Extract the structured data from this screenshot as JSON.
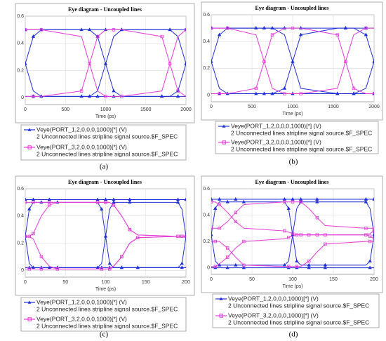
{
  "chart_data": [
    {
      "type": "line",
      "caption": "(a)",
      "title": "Eye diagram - Uncoupled lines",
      "xlabel": "Time (ps)",
      "x": [
        0,
        100,
        200,
        700,
        800,
        900,
        1000,
        1100,
        1200,
        1700,
        1800,
        1900,
        2000
      ],
      "xlim": [
        0,
        2000
      ],
      "xticks": [
        0,
        500,
        1000,
        1500,
        2000
      ],
      "ylim": [
        -0.05,
        0.6
      ],
      "yticks": [
        0,
        0.2,
        0.4,
        0.6
      ],
      "grid": true,
      "series": [
        {
          "name": "Veye(PORT_1,2,0,0,0,1000)[*] (V)",
          "description": "2 Unconnected lines stripline signal source.$F_SPEC",
          "color": "#1f2fd8",
          "marker": "triangle",
          "traces": [
            [
              0.5,
              0.5,
              0.5,
              0.5,
              0.5,
              0.5,
              0.5,
              0.5,
              0.5,
              0.5,
              0.5,
              0.5,
              0.5
            ],
            [
              0.01,
              0.01,
              0.01,
              0.01,
              0.01,
              0.01,
              0.01,
              0.01,
              0.01,
              0.01,
              0.01,
              0.01,
              0.01
            ],
            [
              0.25,
              0.05,
              0.01,
              0.01,
              0.01,
              0.05,
              0.25,
              0.45,
              0.5,
              0.5,
              0.5,
              0.45,
              0.25
            ],
            [
              0.25,
              0.45,
              0.5,
              0.5,
              0.5,
              0.45,
              0.25,
              0.05,
              0.01,
              0.01,
              0.01,
              0.05,
              0.25
            ]
          ]
        },
        {
          "name": "Veye(PORT_3,2,0,0,0,1000)[*] (V)",
          "description": "2 Unconnected lines stripline signal source.$F_SPEC",
          "color": "#e63ad8",
          "marker": "square",
          "traces": [
            [
              0.5,
              0.5,
              0.5,
              0.45,
              0.25,
              0.05,
              0.01,
              0.01,
              0.01,
              0.05,
              0.25,
              0.45,
              0.5
            ],
            [
              0.01,
              0.01,
              0.01,
              0.05,
              0.25,
              0.45,
              0.5,
              0.5,
              0.5,
              0.45,
              0.25,
              0.05,
              0.01
            ]
          ]
        }
      ]
    },
    {
      "type": "line",
      "caption": "(b)",
      "title": "Eye diagram - Uncoupled lines",
      "xlabel": "Time (ps)",
      "x": [
        0,
        100,
        200,
        550,
        650,
        750,
        900,
        1000,
        1100,
        1550,
        1650,
        1750,
        1900,
        2000
      ],
      "xlim": [
        0,
        2000
      ],
      "xticks": [
        0,
        500,
        1000,
        1500,
        2000
      ],
      "ylim": [
        -0.05,
        0.6
      ],
      "yticks": [
        0,
        0.2,
        0.4,
        0.6
      ],
      "grid": true,
      "series": [
        {
          "name": "Veye(PORT_1,2,0,0,0,1000)[*] (V)",
          "description": "2 Unconnected lines stripline signal source.$F_SPEC",
          "color": "#1f2fd8",
          "marker": "triangle",
          "traces": [
            [
              0.5,
              0.5,
              0.5,
              0.5,
              0.5,
              0.5,
              0.5,
              0.5,
              0.5,
              0.5,
              0.5,
              0.5,
              0.5,
              0.5
            ],
            [
              0.01,
              0.01,
              0.01,
              0.01,
              0.01,
              0.01,
              0.01,
              0.01,
              0.01,
              0.01,
              0.01,
              0.01,
              0.01,
              0.01
            ],
            [
              0.25,
              0.05,
              0.01,
              0.01,
              0.01,
              0.01,
              0.05,
              0.25,
              0.45,
              0.5,
              0.5,
              0.5,
              0.45,
              0.25
            ],
            [
              0.25,
              0.45,
              0.5,
              0.5,
              0.5,
              0.5,
              0.45,
              0.25,
              0.05,
              0.01,
              0.01,
              0.01,
              0.05,
              0.25
            ]
          ]
        },
        {
          "name": "Veye(PORT_3,2,0,0,0,1000)[*] (V)",
          "description": "2 Unconnected lines stripline signal source.$F_SPEC",
          "color": "#e63ad8",
          "marker": "square",
          "traces": [
            [
              0.5,
              0.5,
              0.5,
              0.45,
              0.25,
              0.05,
              0.01,
              0.01,
              0.01,
              0.05,
              0.25,
              0.45,
              0.5,
              0.5
            ],
            [
              0.01,
              0.01,
              0.01,
              0.05,
              0.25,
              0.45,
              0.5,
              0.5,
              0.5,
              0.45,
              0.25,
              0.05,
              0.01,
              0.01
            ]
          ]
        }
      ]
    },
    {
      "type": "line",
      "caption": "(c)",
      "title": "Eye diagram - Uncoupled lines",
      "xlabel": "Time (ps)",
      "x": [
        0,
        5,
        10,
        20,
        30,
        40,
        90,
        95,
        100,
        105,
        110,
        120,
        130,
        140,
        190,
        195,
        200
      ],
      "xlim": [
        0,
        200
      ],
      "xticks": [
        0,
        50,
        100,
        150,
        200
      ],
      "ylim": [
        -0.05,
        0.6
      ],
      "yticks": [
        0,
        0.2,
        0.4,
        0.6
      ],
      "grid": true,
      "series": [
        {
          "name": "Veye(PORT_1,2,0,0,0,1000)[*] (V)",
          "description": "2 Unconnected lines stripline signal source.$F_SPEC",
          "color": "#1f2fd8",
          "marker": "triangle",
          "traces": [
            [
              0.52,
              0.52,
              0.52,
              0.52,
              0.52,
              0.52,
              0.52,
              0.52,
              0.52,
              0.52,
              0.52,
              0.52,
              0.52,
              0.52,
              0.52,
              0.52,
              0.52
            ],
            [
              0.02,
              0.02,
              0.02,
              0.02,
              0.02,
              0.02,
              0.02,
              0.02,
              0.02,
              0.02,
              0.02,
              0.02,
              0.02,
              0.02,
              0.02,
              0.02,
              0.02
            ],
            [
              0.25,
              0.05,
              0.02,
              0.02,
              0.02,
              0.02,
              0.02,
              0.05,
              0.25,
              0.45,
              0.5,
              0.5,
              0.5,
              0.5,
              0.5,
              0.45,
              0.25
            ],
            [
              0.25,
              0.45,
              0.5,
              0.5,
              0.5,
              0.5,
              0.5,
              0.45,
              0.25,
              0.05,
              0.02,
              0.02,
              0.02,
              0.02,
              0.02,
              0.05,
              0.25
            ]
          ]
        },
        {
          "name": "Veye(PORT_3,2,0,0,0,1000)[*] (V)",
          "description": "2 Unconnected lines stripline signal source.$F_SPEC",
          "color": "#e63ad8",
          "marker": "square",
          "traces": [
            [
              0.25,
              0.25,
              0.27,
              0.4,
              0.48,
              0.5,
              0.5,
              0.5,
              0.5,
              0.5,
              0.48,
              0.4,
              0.3,
              0.26,
              0.25,
              0.25,
              0.25
            ],
            [
              0.25,
              0.25,
              0.23,
              0.1,
              0.03,
              0.01,
              0.01,
              0.01,
              0.01,
              0.01,
              0.03,
              0.1,
              0.2,
              0.24,
              0.25,
              0.25,
              0.25
            ],
            [
              0.5,
              0.5,
              0.5,
              0.5,
              0.5,
              0.5,
              0.5,
              0.5,
              0.5,
              0.5,
              0.48,
              0.4,
              0.3,
              0.26,
              0.25,
              0.25,
              0.25
            ],
            [
              0.01,
              0.01,
              0.01,
              0.01,
              0.01,
              0.01,
              0.01,
              0.01,
              0.01,
              0.01,
              0.03,
              0.1,
              0.2,
              0.24,
              0.25,
              0.25,
              0.25
            ]
          ]
        }
      ]
    },
    {
      "type": "line",
      "caption": "(d)",
      "title": "Eye diagram - Uncoupled lines",
      "xlabel": "Time (ps)",
      "x": [
        0,
        5,
        10,
        20,
        30,
        40,
        90,
        95,
        100,
        105,
        110,
        120,
        130,
        140,
        190,
        195,
        200
      ],
      "xlim": [
        0,
        200
      ],
      "xticks": [
        0,
        50,
        100,
        150,
        200
      ],
      "ylim": [
        -0.05,
        0.6
      ],
      "yticks": [
        0,
        0.2,
        0.4,
        0.6
      ],
      "grid": true,
      "series": [
        {
          "name": "Veye(PORT_1,2,0,0,0,1000)[*] (V)",
          "description": "2 Unconnected lines stripline signal source.$F_SPEC",
          "color": "#1f2fd8",
          "marker": "triangle",
          "traces": [
            [
              0.52,
              0.52,
              0.52,
              0.52,
              0.52,
              0.52,
              0.52,
              0.52,
              0.52,
              0.52,
              0.52,
              0.52,
              0.52,
              0.52,
              0.52,
              0.52,
              0.52
            ],
            [
              0.0,
              0.0,
              0.0,
              0.0,
              0.0,
              0.0,
              0.0,
              0.0,
              0.0,
              0.0,
              0.0,
              0.0,
              0.0,
              0.0,
              0.0,
              0.0,
              0.0
            ],
            [
              0.25,
              0.05,
              0.02,
              0.02,
              0.02,
              0.02,
              0.02,
              0.05,
              0.25,
              0.45,
              0.5,
              0.5,
              0.5,
              0.5,
              0.5,
              0.45,
              0.25
            ],
            [
              0.25,
              0.45,
              0.5,
              0.5,
              0.5,
              0.5,
              0.5,
              0.45,
              0.25,
              0.05,
              0.02,
              0.02,
              0.02,
              0.02,
              0.02,
              0.05,
              0.25
            ]
          ]
        },
        {
          "name": "Veye(PORT_3,2,0,0,0,1000)[*] (V)",
          "description": "2 Unconnected lines stripline signal source.$F_SPEC",
          "color": "#e63ad8",
          "marker": "square",
          "traces": [
            [
              0.3,
              0.3,
              0.3,
              0.35,
              0.42,
              0.48,
              0.5,
              0.5,
              0.5,
              0.5,
              0.5,
              0.45,
              0.38,
              0.32,
              0.3,
              0.3,
              0.3
            ],
            [
              0.2,
              0.2,
              0.2,
              0.15,
              0.08,
              0.02,
              0.01,
              0.01,
              0.01,
              0.01,
              0.01,
              0.05,
              0.12,
              0.18,
              0.2,
              0.2,
              0.2
            ],
            [
              0.5,
              0.5,
              0.48,
              0.42,
              0.35,
              0.3,
              0.28,
              0.27,
              0.26,
              0.25,
              0.25,
              0.25,
              0.25,
              0.25,
              0.25,
              0.26,
              0.28
            ],
            [
              0.01,
              0.01,
              0.03,
              0.08,
              0.15,
              0.2,
              0.22,
              0.23,
              0.24,
              0.25,
              0.25,
              0.25,
              0.25,
              0.25,
              0.25,
              0.24,
              0.22
            ]
          ]
        }
      ]
    }
  ]
}
